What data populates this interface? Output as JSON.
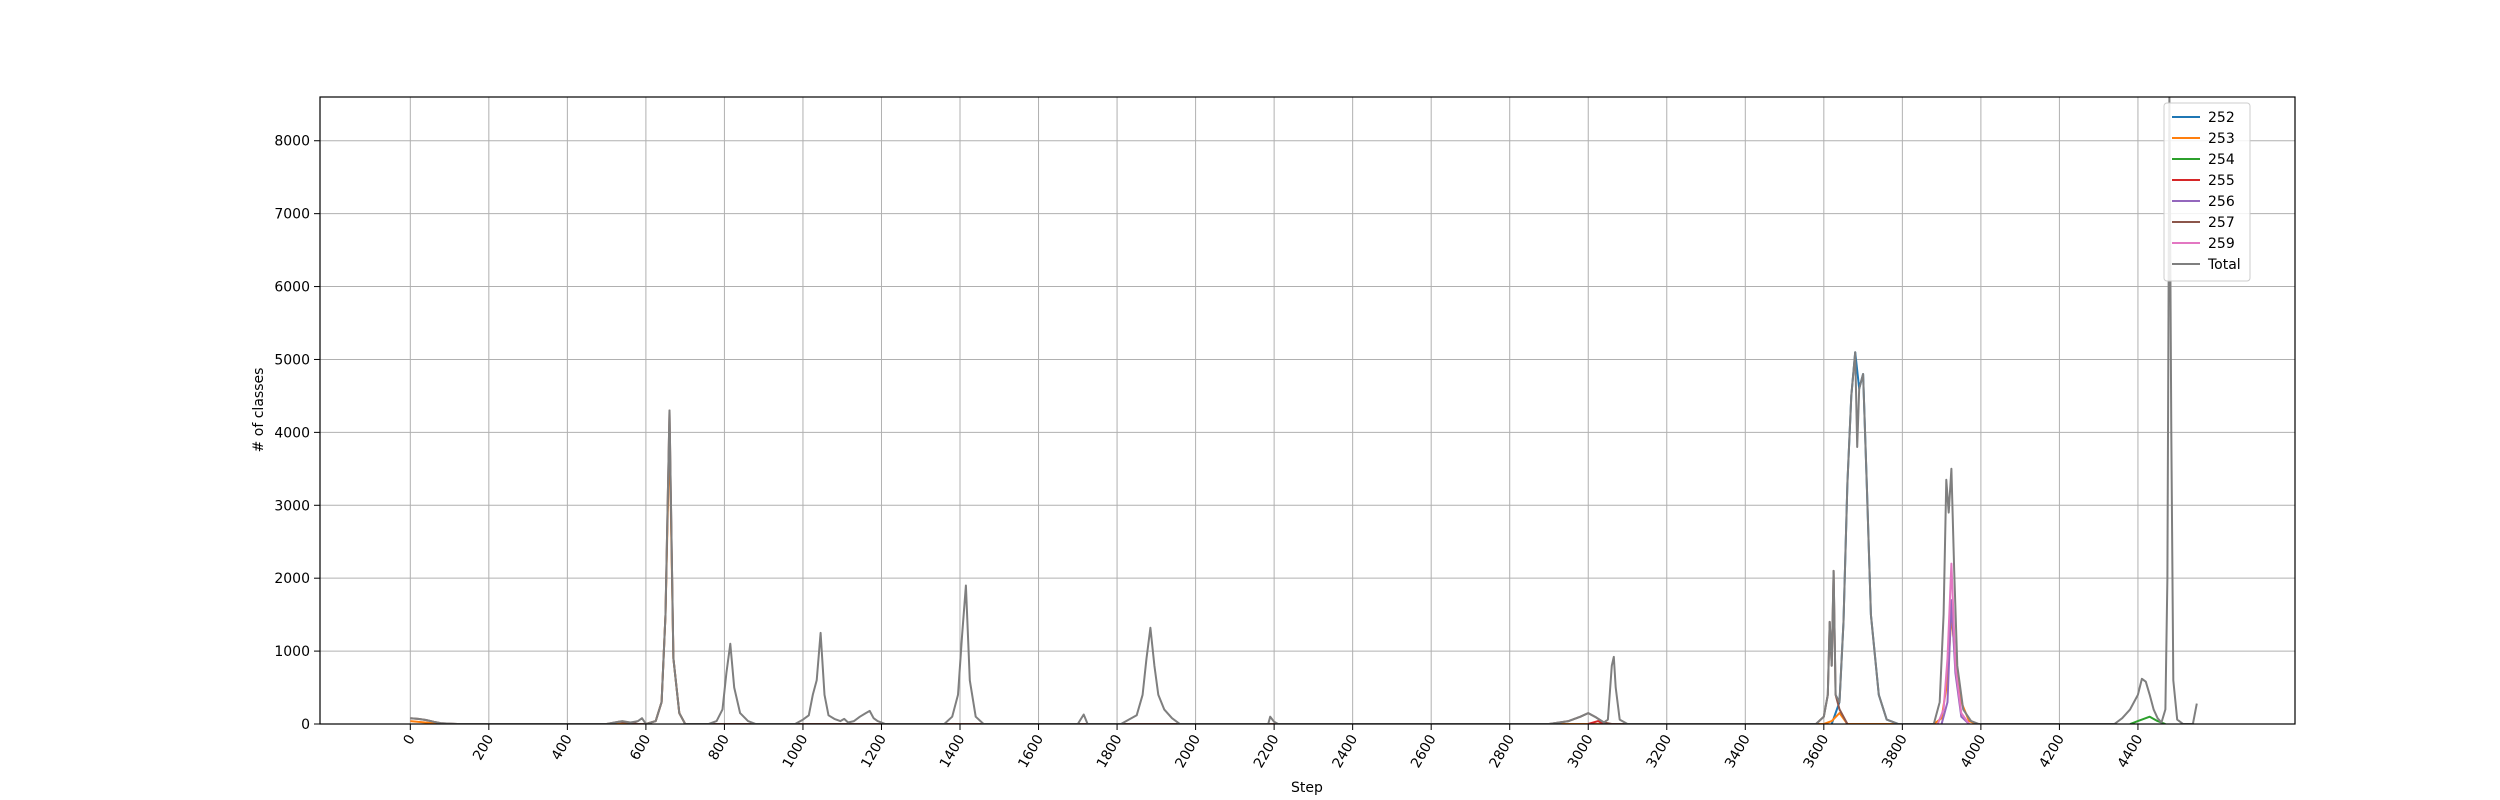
{
  "chart_data": {
    "type": "line",
    "title": "",
    "xlabel": "Step",
    "ylabel": "# of classes",
    "xlim": [
      -230,
      4800
    ],
    "ylim": [
      0,
      8600
    ],
    "xticks": [
      0,
      200,
      400,
      600,
      800,
      1000,
      1200,
      1400,
      1600,
      1800,
      2000,
      2200,
      2400,
      2600,
      2800,
      3000,
      3200,
      3400,
      3600,
      3800,
      4000,
      4200,
      4400
    ],
    "yticks": [
      0,
      1000,
      2000,
      3000,
      4000,
      5000,
      6000,
      7000,
      8000
    ],
    "grid": true,
    "legend_position": "top-right",
    "series": [
      {
        "name": "252",
        "color": "#1f77b4",
        "points": [
          [
            3620,
            0
          ],
          [
            3640,
            300
          ],
          [
            3650,
            1400
          ],
          [
            3660,
            3300
          ],
          [
            3670,
            4500
          ],
          [
            3680,
            5100
          ],
          [
            3690,
            4600
          ],
          [
            3700,
            4800
          ],
          [
            3710,
            3200
          ],
          [
            3720,
            1500
          ],
          [
            3740,
            400
          ],
          [
            3760,
            60
          ],
          [
            3790,
            0
          ]
        ]
      },
      {
        "name": "253",
        "color": "#ff7f0e",
        "points": [
          [
            0,
            40
          ],
          [
            80,
            0
          ],
          [
            600,
            0
          ],
          [
            625,
            40
          ],
          [
            640,
            300
          ],
          [
            650,
            1500
          ],
          [
            660,
            4000
          ],
          [
            670,
            900
          ],
          [
            685,
            150
          ],
          [
            700,
            0
          ],
          [
            3600,
            0
          ],
          [
            3620,
            40
          ],
          [
            3640,
            150
          ],
          [
            3660,
            0
          ],
          [
            3880,
            0
          ],
          [
            3900,
            80
          ],
          [
            3915,
            600
          ],
          [
            3925,
            1500
          ],
          [
            3935,
            900
          ],
          [
            3950,
            300
          ],
          [
            3970,
            40
          ],
          [
            3990,
            0
          ]
        ]
      },
      {
        "name": "254",
        "color": "#2ca02c",
        "points": [
          [
            4380,
            0
          ],
          [
            4400,
            40
          ],
          [
            4430,
            100
          ],
          [
            4450,
            40
          ],
          [
            4470,
            0
          ]
        ]
      },
      {
        "name": "255",
        "color": "#d62728",
        "points": [
          [
            3000,
            0
          ],
          [
            3025,
            40
          ],
          [
            3040,
            0
          ]
        ]
      },
      {
        "name": "256",
        "color": "#9467bd",
        "points": [
          [
            3900,
            0
          ],
          [
            3915,
            300
          ],
          [
            3925,
            1700
          ],
          [
            3935,
            700
          ],
          [
            3950,
            100
          ],
          [
            3970,
            0
          ]
        ]
      },
      {
        "name": "257",
        "color": "#8c564b",
        "points": [
          [
            0,
            80
          ],
          [
            20,
            70
          ],
          [
            40,
            55
          ],
          [
            60,
            30
          ],
          [
            80,
            10
          ],
          [
            120,
            0
          ],
          [
            500,
            0
          ],
          [
            530,
            30
          ],
          [
            560,
            20
          ],
          [
            580,
            0
          ],
          [
            600,
            0
          ],
          [
            625,
            40
          ],
          [
            640,
            300
          ],
          [
            650,
            1500
          ],
          [
            660,
            4300
          ],
          [
            670,
            900
          ],
          [
            685,
            150
          ],
          [
            700,
            0
          ],
          [
            2900,
            0
          ],
          [
            2950,
            40
          ],
          [
            2980,
            100
          ],
          [
            3000,
            150
          ],
          [
            3020,
            90
          ],
          [
            3040,
            20
          ],
          [
            3060,
            0
          ],
          [
            3580,
            0
          ],
          [
            3600,
            100
          ],
          [
            3610,
            400
          ],
          [
            3615,
            1400
          ],
          [
            3620,
            800
          ],
          [
            3625,
            2100
          ],
          [
            3630,
            400
          ],
          [
            3640,
            200
          ],
          [
            3660,
            0
          ]
        ]
      },
      {
        "name": "259",
        "color": "#e377c2",
        "points": [
          [
            3890,
            0
          ],
          [
            3905,
            200
          ],
          [
            3915,
            900
          ],
          [
            3925,
            2200
          ],
          [
            3935,
            800
          ],
          [
            3950,
            150
          ],
          [
            3970,
            0
          ]
        ]
      },
      {
        "name": "Total",
        "color": "#7f7f7f",
        "points": [
          [
            0,
            80
          ],
          [
            20,
            70
          ],
          [
            40,
            55
          ],
          [
            60,
            30
          ],
          [
            80,
            10
          ],
          [
            120,
            0
          ],
          [
            500,
            0
          ],
          [
            520,
            20
          ],
          [
            540,
            40
          ],
          [
            560,
            20
          ],
          [
            580,
            40
          ],
          [
            590,
            80
          ],
          [
            600,
            0
          ],
          [
            625,
            40
          ],
          [
            640,
            300
          ],
          [
            650,
            1500
          ],
          [
            660,
            4300
          ],
          [
            670,
            900
          ],
          [
            685,
            150
          ],
          [
            700,
            0
          ],
          [
            760,
            0
          ],
          [
            780,
            40
          ],
          [
            795,
            200
          ],
          [
            805,
            700
          ],
          [
            815,
            1100
          ],
          [
            825,
            500
          ],
          [
            840,
            150
          ],
          [
            860,
            40
          ],
          [
            880,
            0
          ],
          [
            980,
            0
          ],
          [
            1000,
            60
          ],
          [
            1015,
            120
          ],
          [
            1025,
            400
          ],
          [
            1035,
            600
          ],
          [
            1045,
            1250
          ],
          [
            1055,
            400
          ],
          [
            1065,
            120
          ],
          [
            1080,
            70
          ],
          [
            1095,
            40
          ],
          [
            1105,
            70
          ],
          [
            1115,
            20
          ],
          [
            1130,
            40
          ],
          [
            1145,
            100
          ],
          [
            1160,
            150
          ],
          [
            1170,
            180
          ],
          [
            1180,
            80
          ],
          [
            1190,
            40
          ],
          [
            1210,
            0
          ],
          [
            1360,
            0
          ],
          [
            1380,
            100
          ],
          [
            1395,
            400
          ],
          [
            1405,
            1200
          ],
          [
            1415,
            1900
          ],
          [
            1425,
            600
          ],
          [
            1440,
            100
          ],
          [
            1460,
            0
          ],
          [
            1700,
            0
          ],
          [
            1715,
            130
          ],
          [
            1725,
            0
          ],
          [
            1810,
            0
          ],
          [
            1830,
            60
          ],
          [
            1850,
            120
          ],
          [
            1865,
            400
          ],
          [
            1875,
            900
          ],
          [
            1885,
            1320
          ],
          [
            1895,
            800
          ],
          [
            1905,
            400
          ],
          [
            1920,
            200
          ],
          [
            1940,
            80
          ],
          [
            1960,
            0
          ],
          [
            2185,
            0
          ],
          [
            2190,
            100
          ],
          [
            2200,
            30
          ],
          [
            2210,
            0
          ],
          [
            2900,
            0
          ],
          [
            2950,
            40
          ],
          [
            2980,
            100
          ],
          [
            3000,
            150
          ],
          [
            3020,
            90
          ],
          [
            3040,
            20
          ],
          [
            3050,
            60
          ],
          [
            3060,
            800
          ],
          [
            3065,
            920
          ],
          [
            3070,
            500
          ],
          [
            3080,
            60
          ],
          [
            3100,
            0
          ],
          [
            3580,
            0
          ],
          [
            3600,
            100
          ],
          [
            3610,
            400
          ],
          [
            3615,
            1400
          ],
          [
            3620,
            800
          ],
          [
            3625,
            2100
          ],
          [
            3630,
            400
          ],
          [
            3640,
            300
          ],
          [
            3650,
            1400
          ],
          [
            3660,
            3300
          ],
          [
            3670,
            4500
          ],
          [
            3680,
            5100
          ],
          [
            3685,
            3800
          ],
          [
            3690,
            4600
          ],
          [
            3700,
            4800
          ],
          [
            3710,
            3200
          ],
          [
            3720,
            1500
          ],
          [
            3740,
            400
          ],
          [
            3760,
            60
          ],
          [
            3790,
            0
          ],
          [
            3880,
            0
          ],
          [
            3895,
            300
          ],
          [
            3905,
            1500
          ],
          [
            3912,
            3350
          ],
          [
            3918,
            2900
          ],
          [
            3925,
            3500
          ],
          [
            3932,
            2100
          ],
          [
            3940,
            800
          ],
          [
            3955,
            200
          ],
          [
            3975,
            40
          ],
          [
            3995,
            0
          ],
          [
            4340,
            0
          ],
          [
            4360,
            80
          ],
          [
            4380,
            200
          ],
          [
            4400,
            400
          ],
          [
            4410,
            620
          ],
          [
            4420,
            580
          ],
          [
            4430,
            400
          ],
          [
            4440,
            200
          ],
          [
            4450,
            80
          ],
          [
            4460,
            20
          ],
          [
            4470,
            200
          ],
          [
            4475,
            2000
          ],
          [
            4480,
            8600
          ],
          [
            4485,
            4000
          ],
          [
            4490,
            600
          ],
          [
            4500,
            60
          ],
          [
            4515,
            0
          ],
          [
            4540,
            0
          ],
          [
            4550,
            280
          ]
        ]
      }
    ]
  }
}
